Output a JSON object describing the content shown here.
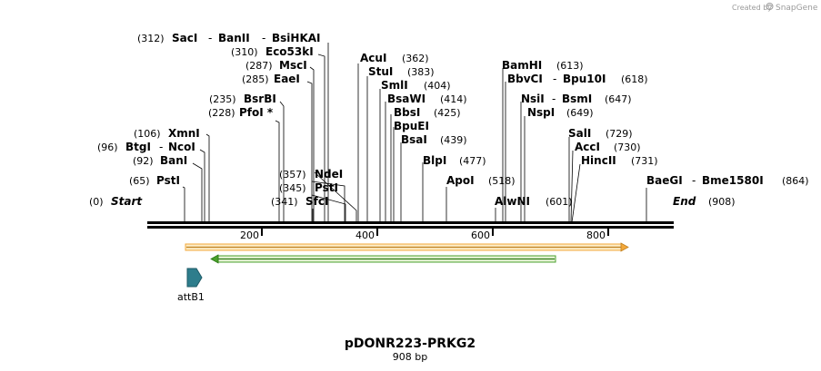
{
  "header": {
    "credit_text": "Created by",
    "brand_name": "SnapGene"
  },
  "map": {
    "title": "pDONR223-PRKG2",
    "length_label": "908 bp",
    "length_bp": 908
  },
  "ruler": {
    "ticks": [
      "200",
      "400",
      "600",
      "800"
    ]
  },
  "ends": {
    "start": {
      "name": "Start",
      "pos": "(0)"
    },
    "end": {
      "name": "End",
      "pos": "(908)"
    }
  },
  "sites": [
    {
      "id": "psti-65",
      "name": "PstI",
      "pos": "(65)"
    },
    {
      "id": "bani",
      "name": "BanI",
      "pos": "(92)"
    },
    {
      "id": "btgi",
      "name": "BtgI",
      "pos": "(96)",
      "group": "NcoI"
    },
    {
      "id": "xmni",
      "name": "XmnI",
      "pos": "(106)"
    },
    {
      "id": "pfoi",
      "name": "PfoI *",
      "pos": "(228)"
    },
    {
      "id": "bsrbi",
      "name": "BsrBI",
      "pos": "(235)"
    },
    {
      "id": "eaei",
      "name": "EaeI",
      "pos": "(285)"
    },
    {
      "id": "msci",
      "name": "MscI",
      "pos": "(287)"
    },
    {
      "id": "eco53ki",
      "name": "Eco53kI",
      "pos": "(310)"
    },
    {
      "id": "saci",
      "name": "SacI",
      "pos": "(312)",
      "group": [
        "BanII",
        "BsiHKAI"
      ]
    },
    {
      "id": "sfci",
      "name": "SfcI",
      "pos": "(341)"
    },
    {
      "id": "psti-345",
      "name": "PstI",
      "pos": "(345)"
    },
    {
      "id": "ndei",
      "name": "NdeI",
      "pos": "(357)"
    },
    {
      "id": "acui",
      "name": "AcuI",
      "pos": "(362)"
    },
    {
      "id": "stui",
      "name": "StuI",
      "pos": "(383)"
    },
    {
      "id": "smli",
      "name": "SmlI",
      "pos": "(404)"
    },
    {
      "id": "bsawi",
      "name": "BsaWI",
      "pos": "(414)"
    },
    {
      "id": "bbsi",
      "name": "BbsI",
      "pos": "(425)"
    },
    {
      "id": "bpuei",
      "name": "BpuEI",
      "pos": ""
    },
    {
      "id": "bsai",
      "name": "BsaI",
      "pos": "(439)"
    },
    {
      "id": "blpi",
      "name": "BlpI",
      "pos": "(477)"
    },
    {
      "id": "apoi",
      "name": "ApoI",
      "pos": "(518)"
    },
    {
      "id": "alwni",
      "name": "AlwNI",
      "pos": "(601)"
    },
    {
      "id": "bamhi",
      "name": "BamHI",
      "pos": "(613)"
    },
    {
      "id": "bbvci",
      "name": "BbvCI",
      "pos": "(618)",
      "group": "Bpu10I"
    },
    {
      "id": "nsii",
      "name": "NsiI",
      "pos": "(647)",
      "group": "BsmI"
    },
    {
      "id": "nspi",
      "name": "NspI",
      "pos": "(649)"
    },
    {
      "id": "sali",
      "name": "SalI",
      "pos": "(729)"
    },
    {
      "id": "acci",
      "name": "AccI",
      "pos": "(730)"
    },
    {
      "id": "hincii",
      "name": "HincII",
      "pos": "(731)"
    },
    {
      "id": "baegi",
      "name": "BaeGI",
      "pos": "(864)",
      "group": "Bme1580I"
    }
  ],
  "separators": {
    "dash": "-"
  },
  "features": {
    "attb1": {
      "name": "attB1",
      "color": "#2e7d8c"
    },
    "orange_arrow": {
      "color": "#f3a83b",
      "fill": "#fcebc4"
    },
    "green_arrow": {
      "color": "#4aa02c",
      "fill": "#e8f5d8"
    }
  }
}
